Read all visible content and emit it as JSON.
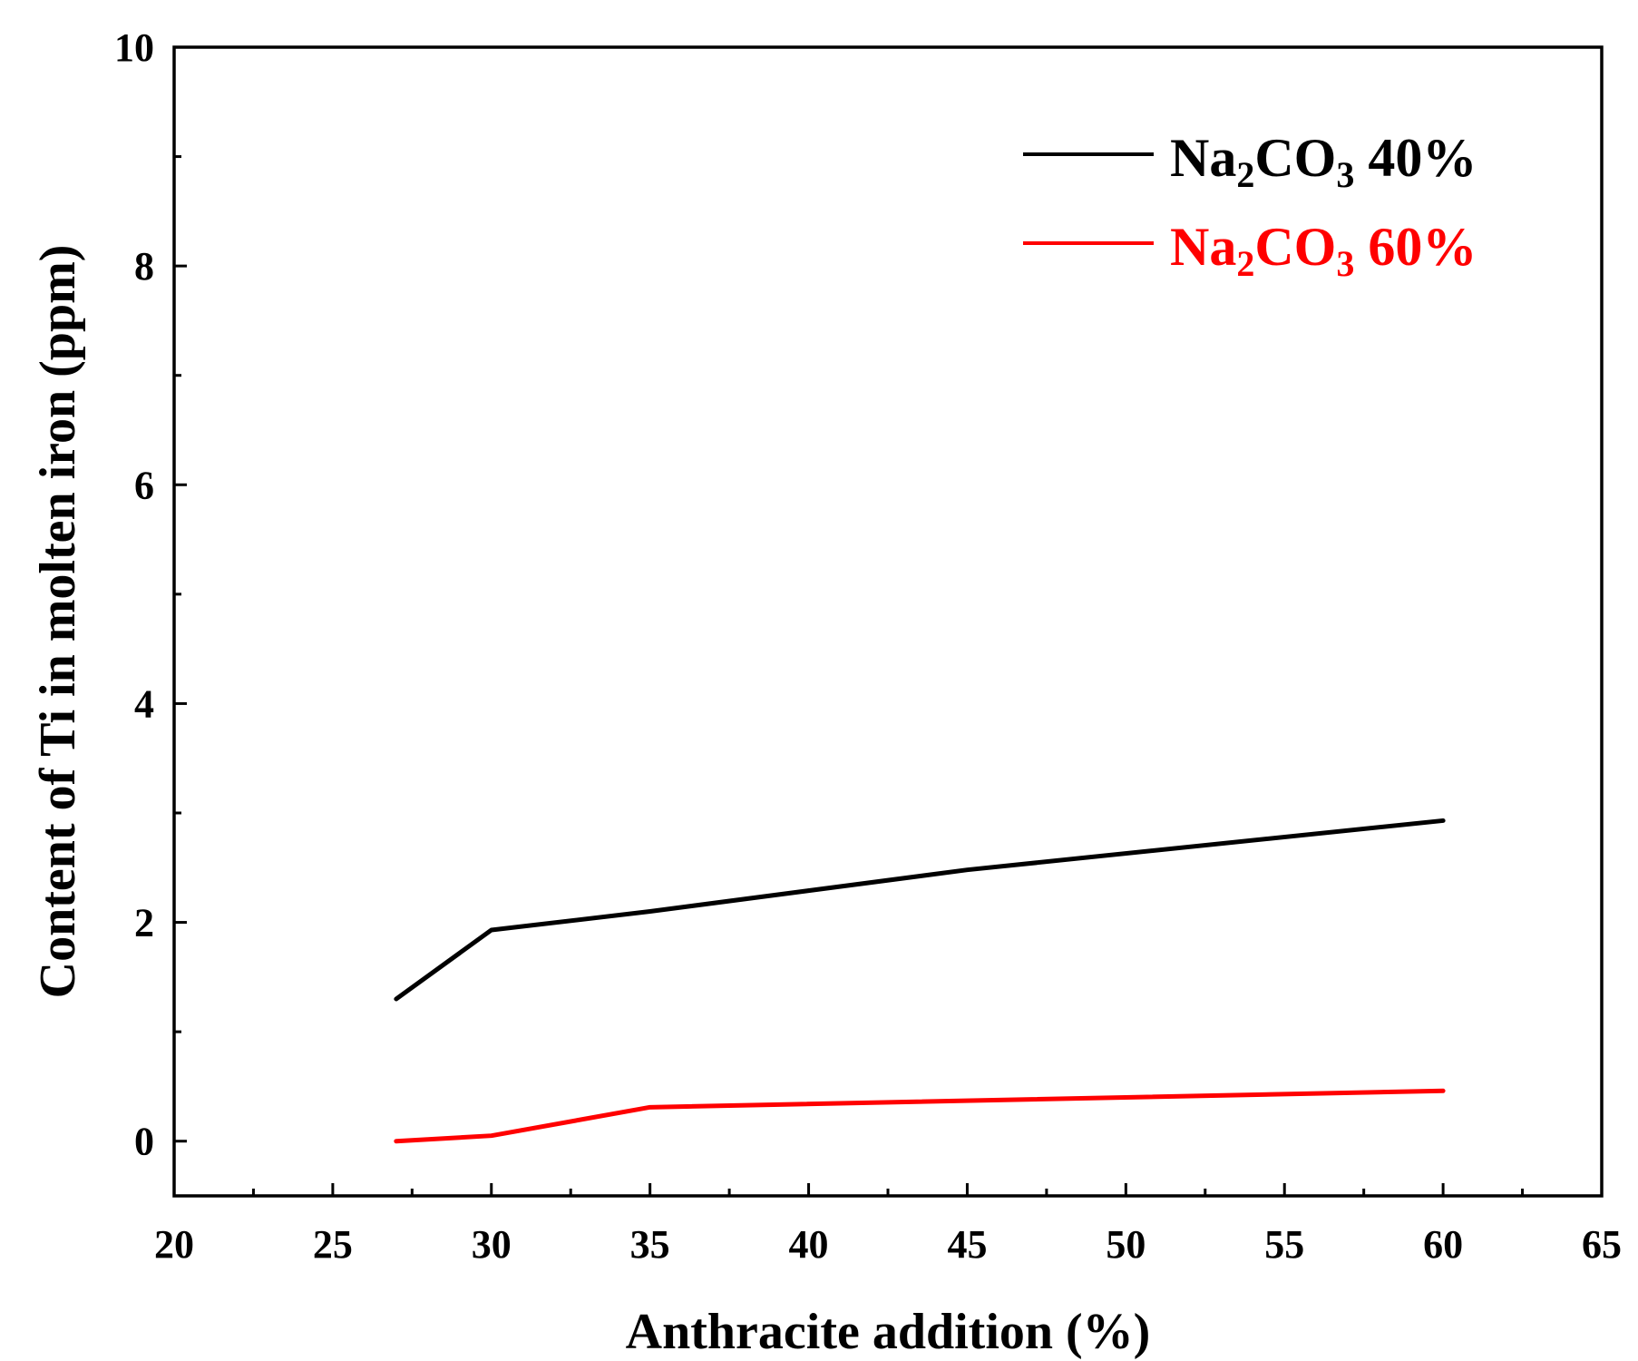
{
  "chart_data": {
    "type": "line",
    "title": "",
    "xlabel": "Anthracite addition (%)",
    "ylabel": "Content of Ti in molten iron (ppm)",
    "xlim": [
      20,
      65
    ],
    "ylim": [
      -0.5,
      10
    ],
    "x_ticks": [
      20,
      25,
      30,
      35,
      40,
      45,
      50,
      55,
      60,
      65
    ],
    "y_ticks": [
      0,
      2,
      4,
      6,
      8,
      10
    ],
    "grid": false,
    "legend_position": "top-right",
    "series": [
      {
        "name_main": "Na",
        "name_sub1": "2",
        "name_mid": "CO",
        "name_sub2": "3",
        "name_tail": " 40%",
        "color": "#000000",
        "x": [
          27,
          30,
          35,
          45,
          60
        ],
        "y": [
          1.3,
          1.93,
          2.1,
          2.48,
          2.93
        ]
      },
      {
        "name_main": "Na",
        "name_sub1": "2",
        "name_mid": "CO",
        "name_sub2": "3",
        "name_tail": " 60%",
        "color": "#ff0000",
        "x": [
          27,
          30,
          35,
          60
        ],
        "y": [
          0.0,
          0.05,
          0.31,
          0.46
        ]
      }
    ]
  }
}
